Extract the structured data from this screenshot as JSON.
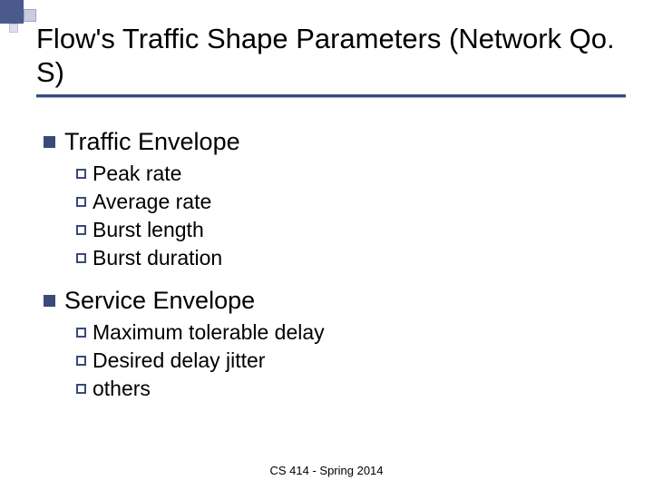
{
  "title": "Flow's Traffic Shape Parameters (Network Qo. S)",
  "sections": [
    {
      "heading": "Traffic Envelope",
      "items": [
        "Peak rate",
        "Average rate",
        "Burst length",
        "Burst duration"
      ]
    },
    {
      "heading": "Service Envelope",
      "items": [
        "Maximum tolerable delay",
        "Desired delay jitter",
        "others"
      ]
    }
  ],
  "footer": "CS 414 - Spring 2014",
  "colors": {
    "accent": "#3a4a7a",
    "accent_light": "#c8cde0",
    "background": "#ffffff",
    "text": "#000000"
  },
  "fonts": {
    "title_size": 31,
    "lvl1_size": 27,
    "lvl2_size": 23,
    "footer_size": 13
  }
}
